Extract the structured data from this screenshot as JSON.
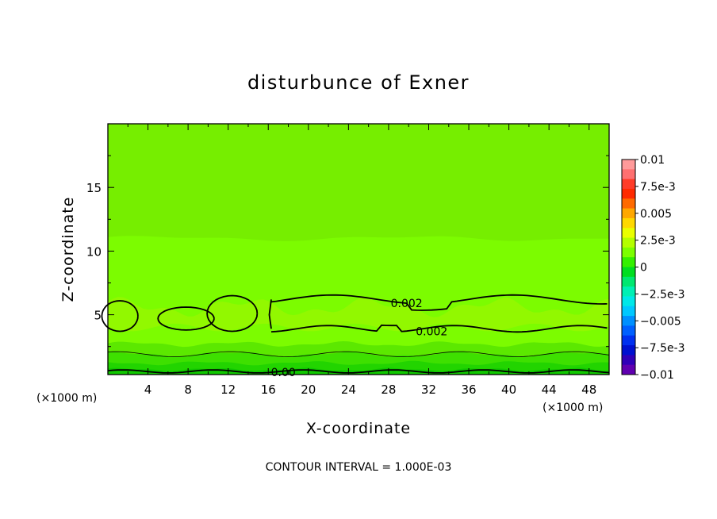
{
  "chart_data": {
    "type": "heatmap",
    "title": "disturbunce of Exner",
    "xlabel": "X-coordinate",
    "ylabel": "Z-coordinate",
    "x_unit": "(×1000 m)",
    "y_unit": "(×1000 m)",
    "xlim": [
      0,
      50
    ],
    "ylim": [
      0.3,
      20
    ],
    "x_ticks": [
      4,
      8,
      12,
      16,
      20,
      24,
      28,
      32,
      36,
      40,
      44,
      48
    ],
    "y_ticks": [
      5,
      10,
      15
    ],
    "footer": "CONTOUR INTERVAL = 1.000E-03",
    "contour_labels": [
      {
        "text": "0.002",
        "x": 29.8,
        "z": 5.9
      },
      {
        "text": "0.002",
        "x": 32.3,
        "z": 3.7
      },
      {
        "text": "0.00",
        "x": 17.5,
        "z": 0.5
      }
    ],
    "colorbar": {
      "min": -0.01,
      "max": 0.01,
      "tick_labels": [
        "0.01",
        "7.5e-3",
        "0.005",
        "2.5e-3",
        "0",
        "−2.5e-3",
        "−0.005",
        "−7.5e-3",
        "−0.01"
      ],
      "colors": [
        "#ff9a9a",
        "#ff7070",
        "#ff3c28",
        "#ff2a00",
        "#ff6a00",
        "#ffa800",
        "#ffd800",
        "#eaff00",
        "#b4ff00",
        "#7cff00",
        "#34f000",
        "#00de20",
        "#00e870",
        "#00f0b4",
        "#00e8e8",
        "#00c8ff",
        "#0090ff",
        "#0060ff",
        "#0030f0",
        "#0010d0",
        "#3000b8",
        "#6000b0"
      ]
    }
  }
}
